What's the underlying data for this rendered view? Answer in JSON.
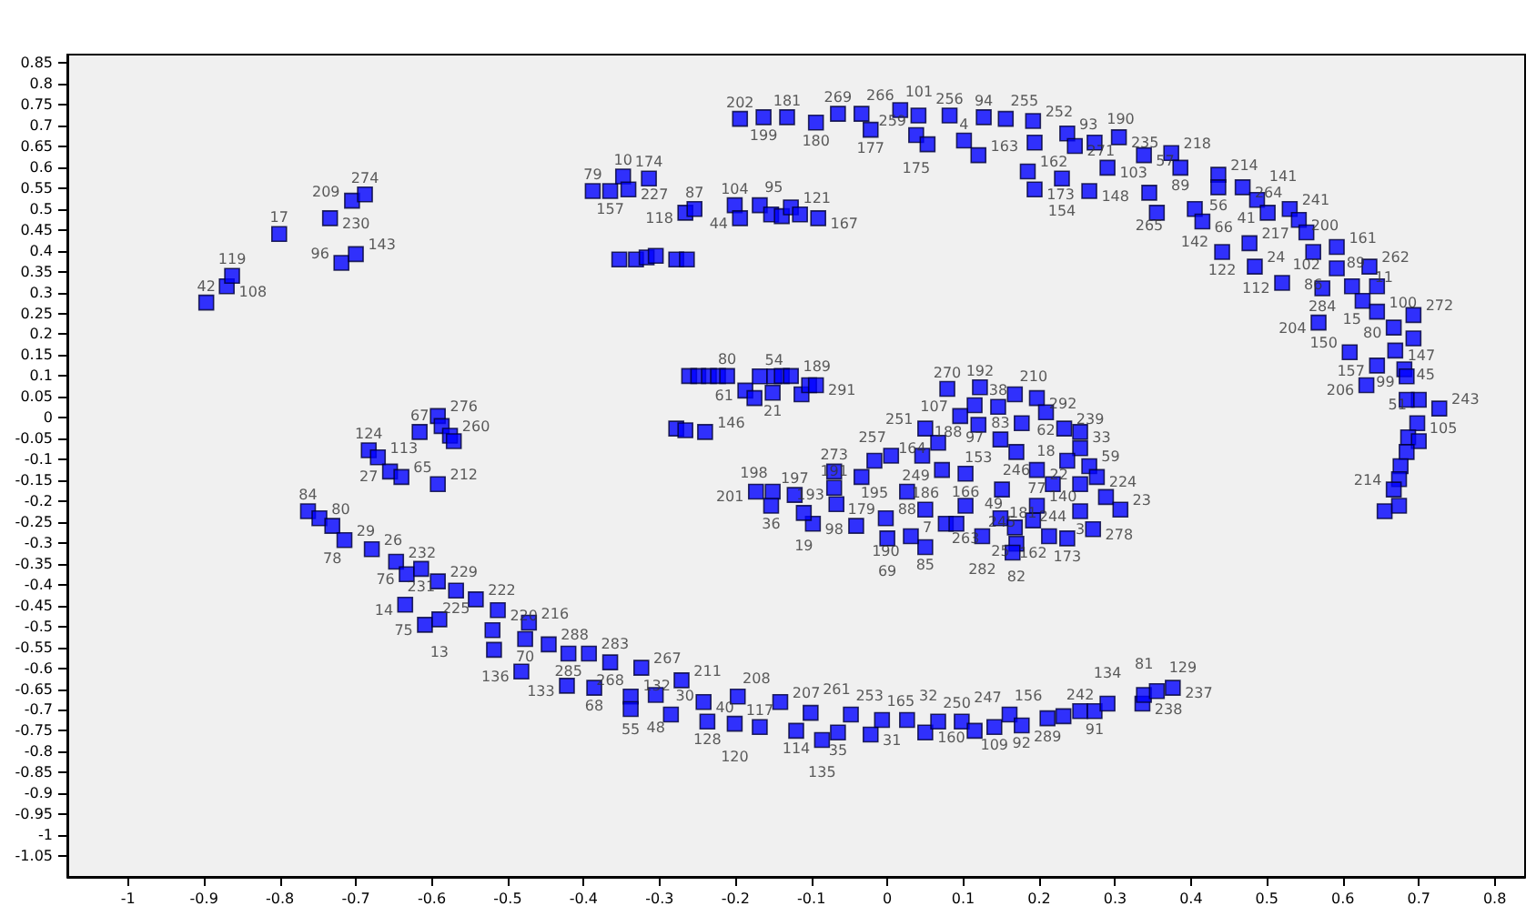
{
  "chart_data": {
    "type": "scatter",
    "marker": "square",
    "grid": false,
    "xlim": [
      -1.08,
      0.84
    ],
    "xticks": [
      -1,
      -0.9,
      -0.8,
      -0.7,
      -0.6,
      -0.5,
      -0.4,
      -0.3,
      -0.2,
      -0.1,
      0,
      0.1,
      0.2,
      0.3,
      0.4,
      0.5,
      0.6,
      0.7,
      0.8
    ],
    "ylim": [
      -1.1,
      0.87
    ],
    "yticks": [
      -1.05,
      -1,
      -0.95,
      -0.9,
      -0.85,
      -0.8,
      -0.75,
      -0.7,
      -0.65,
      -0.6,
      -0.55,
      -0.5,
      -0.45,
      -0.4,
      -0.35,
      -0.3,
      -0.25,
      -0.2,
      -0.15,
      -0.1,
      -0.05,
      0,
      0.05,
      0.1,
      0.15,
      0.2,
      0.25,
      0.3,
      0.35,
      0.4,
      0.45,
      0.5,
      0.55,
      0.6,
      0.65,
      0.7,
      0.75,
      0.8,
      0.85
    ],
    "series": [
      {
        "color": "#0000ff",
        "x": [
          -0.897,
          -0.87,
          -0.863,
          -0.801,
          -0.734,
          -0.705,
          -0.688,
          -0.719,
          -0.7,
          -0.616,
          -0.592,
          -0.587,
          -0.576,
          -0.571,
          -0.683,
          -0.671,
          -0.655,
          -0.64,
          -0.592,
          -0.763,
          -0.748,
          -0.731,
          -0.715,
          -0.679,
          -0.647,
          -0.633,
          -0.614,
          -0.592,
          -0.568,
          -0.635,
          -0.609,
          -0.59,
          -0.542,
          -0.513,
          -0.52,
          -0.518,
          -0.472,
          -0.477,
          -0.446,
          -0.42,
          -0.393,
          -0.365,
          -0.482,
          -0.422,
          -0.386,
          -0.324,
          -0.338,
          -0.338,
          -0.305,
          -0.271,
          -0.285,
          -0.242,
          -0.237,
          -0.197,
          -0.201,
          -0.168,
          -0.141,
          -0.12,
          -0.101,
          -0.086,
          -0.065,
          -0.048,
          -0.022,
          -0.007,
          0.026,
          0.05,
          0.067,
          0.098,
          0.115,
          0.141,
          0.161,
          0.177,
          0.211,
          0.232,
          0.254,
          0.273,
          0.29,
          0.336,
          0.338,
          0.355,
          0.376,
          -0.388,
          -0.365,
          -0.348,
          -0.341,
          -0.314,
          -0.266,
          -0.254,
          -0.201,
          -0.194,
          -0.168,
          -0.153,
          -0.139,
          -0.127,
          -0.115,
          -0.091,
          -0.353,
          -0.331,
          -0.317,
          -0.305,
          -0.278,
          -0.264,
          -0.194,
          -0.163,
          -0.132,
          -0.094,
          -0.065,
          -0.034,
          -0.022,
          0.017,
          0.041,
          0.038,
          0.053,
          0.082,
          0.101,
          0.127,
          0.12,
          0.156,
          0.192,
          0.194,
          0.185,
          0.194,
          0.237,
          0.247,
          0.273,
          0.305,
          0.29,
          0.23,
          0.266,
          0.338,
          0.374,
          0.386,
          0.345,
          0.355,
          0.436,
          0.436,
          0.468,
          0.405,
          0.415,
          0.487,
          0.501,
          0.441,
          0.477,
          0.484,
          0.53,
          0.542,
          0.552,
          0.561,
          0.592,
          0.52,
          0.573,
          0.592,
          0.612,
          0.626,
          0.635,
          0.645,
          0.568,
          0.645,
          0.693,
          0.667,
          0.693,
          0.609,
          0.669,
          0.681,
          0.645,
          0.684,
          0.631,
          0.727,
          0.7,
          0.684,
          0.698,
          0.686,
          0.7,
          0.684,
          0.676,
          0.674,
          0.667,
          0.655,
          0.674,
          -0.261,
          -0.249,
          -0.235,
          -0.223,
          -0.211,
          -0.187,
          -0.175,
          -0.168,
          -0.149,
          -0.151,
          -0.139,
          -0.127,
          -0.113,
          -0.103,
          -0.094,
          -0.278,
          -0.266,
          -0.24,
          0.079,
          0.122,
          0.115,
          0.146,
          0.096,
          0.12,
          0.168,
          0.197,
          0.177,
          0.149,
          0.05,
          0.067,
          0.209,
          0.233,
          0.254,
          0.254,
          0.237,
          0.266,
          0.17,
          0.197,
          0.218,
          0.254,
          0.276,
          0.288,
          0.307,
          0.197,
          0.192,
          0.254,
          0.237,
          0.271,
          0.213,
          0.103,
          0.072,
          0.046,
          0.005,
          -0.017,
          -0.07,
          -0.034,
          0.026,
          0.05,
          0.103,
          0.151,
          0.149,
          0.168,
          0.077,
          0.091,
          0.125,
          0.17,
          0.165,
          0.05,
          0.031,
          -0.002,
          0.0,
          -0.041,
          -0.098,
          -0.11,
          -0.122,
          -0.151,
          -0.173,
          -0.153,
          -0.067,
          -0.07
        ],
        "values": [
          0.276,
          0.315,
          0.34,
          0.44,
          0.478,
          0.52,
          0.535,
          0.371,
          0.392,
          -0.034,
          0.004,
          -0.02,
          -0.043,
          -0.056,
          -0.078,
          -0.095,
          -0.129,
          -0.142,
          -0.159,
          -0.224,
          -0.241,
          -0.259,
          -0.293,
          -0.315,
          -0.345,
          -0.375,
          -0.362,
          -0.392,
          -0.414,
          -0.448,
          -0.496,
          -0.483,
          -0.435,
          -0.461,
          -0.509,
          -0.556,
          -0.491,
          -0.53,
          -0.543,
          -0.565,
          -0.565,
          -0.586,
          -0.608,
          -0.642,
          -0.647,
          -0.599,
          -0.668,
          -0.698,
          -0.664,
          -0.629,
          -0.711,
          -0.681,
          -0.728,
          -0.668,
          -0.733,
          -0.741,
          -0.681,
          -0.75,
          -0.707,
          -0.772,
          -0.754,
          -0.711,
          -0.759,
          -0.724,
          -0.724,
          -0.754,
          -0.728,
          -0.728,
          -0.75,
          -0.741,
          -0.711,
          -0.737,
          -0.72,
          -0.715,
          -0.703,
          -0.703,
          -0.685,
          -0.685,
          -0.664,
          -0.655,
          -0.647,
          0.543,
          0.543,
          0.578,
          0.547,
          0.573,
          0.491,
          0.5,
          0.509,
          0.478,
          0.509,
          0.487,
          0.483,
          0.504,
          0.487,
          0.478,
          0.379,
          0.379,
          0.384,
          0.388,
          0.379,
          0.379,
          0.716,
          0.72,
          0.72,
          0.707,
          0.728,
          0.728,
          0.69,
          0.737,
          0.724,
          0.677,
          0.655,
          0.724,
          0.664,
          0.72,
          0.629,
          0.716,
          0.711,
          0.659,
          0.59,
          0.547,
          0.681,
          0.651,
          0.659,
          0.672,
          0.599,
          0.573,
          0.543,
          0.629,
          0.634,
          0.599,
          0.539,
          0.491,
          0.582,
          0.552,
          0.552,
          0.5,
          0.47,
          0.522,
          0.491,
          0.397,
          0.418,
          0.362,
          0.5,
          0.474,
          0.444,
          0.397,
          0.409,
          0.323,
          0.31,
          0.358,
          0.315,
          0.28,
          0.362,
          0.315,
          0.228,
          0.254,
          0.246,
          0.216,
          0.19,
          0.157,
          0.161,
          0.116,
          0.125,
          0.099,
          0.078,
          0.022,
          0.043,
          0.043,
          -0.013,
          -0.047,
          -0.056,
          -0.082,
          -0.116,
          -0.147,
          -0.172,
          -0.224,
          -0.211,
          0.1,
          0.1,
          0.1,
          0.1,
          0.1,
          0.065,
          0.047,
          0.099,
          0.099,
          0.06,
          0.1,
          0.1,
          0.056,
          0.078,
          0.078,
          -0.026,
          -0.03,
          -0.034,
          0.069,
          0.073,
          0.03,
          0.026,
          0.004,
          -0.017,
          0.056,
          0.047,
          -0.013,
          -0.052,
          -0.026,
          -0.06,
          0.013,
          -0.026,
          -0.034,
          -0.073,
          -0.103,
          -0.116,
          -0.082,
          -0.125,
          -0.159,
          -0.159,
          -0.142,
          -0.19,
          -0.22,
          -0.211,
          -0.246,
          -0.224,
          -0.289,
          -0.267,
          -0.284,
          -0.134,
          -0.125,
          -0.091,
          -0.091,
          -0.103,
          -0.129,
          -0.142,
          -0.177,
          -0.22,
          -0.211,
          -0.172,
          -0.241,
          -0.263,
          -0.254,
          -0.254,
          -0.284,
          -0.302,
          -0.323,
          -0.31,
          -0.284,
          -0.241,
          -0.289,
          -0.259,
          -0.254,
          -0.228,
          -0.185,
          -0.177,
          -0.177,
          -0.211,
          -0.207,
          -0.168
        ]
      }
    ],
    "annotations": [
      {
        "text": "42",
        "x": -0.897,
        "y": 0.276
      },
      {
        "text": "108",
        "x": -0.87,
        "y": 0.315
      },
      {
        "text": "119",
        "x": -0.863,
        "y": 0.34
      },
      {
        "text": "17",
        "x": -0.801,
        "y": 0.44
      },
      {
        "text": "230",
        "x": -0.734,
        "y": 0.478
      },
      {
        "text": "209",
        "x": -0.705,
        "y": 0.52
      },
      {
        "text": "274",
        "x": -0.688,
        "y": 0.535
      },
      {
        "text": "96",
        "x": -0.719,
        "y": 0.371
      },
      {
        "text": "143",
        "x": -0.7,
        "y": 0.392
      },
      {
        "text": "67",
        "x": -0.616,
        "y": -0.034
      },
      {
        "text": "276",
        "x": -0.592,
        "y": 0.004
      },
      {
        "text": "260",
        "x": -0.576,
        "y": -0.043
      },
      {
        "text": "124",
        "x": -0.683,
        "y": -0.078
      },
      {
        "text": "113",
        "x": -0.671,
        "y": -0.095
      },
      {
        "text": "27",
        "x": -0.655,
        "y": -0.129
      },
      {
        "text": "65",
        "x": -0.64,
        "y": -0.142
      },
      {
        "text": "212",
        "x": -0.592,
        "y": -0.159
      },
      {
        "text": "84",
        "x": -0.763,
        "y": -0.224
      },
      {
        "text": "80",
        "x": -0.748,
        "y": -0.241
      },
      {
        "text": "78",
        "x": -0.731,
        "y": -0.259
      },
      {
        "text": "29",
        "x": -0.715,
        "y": -0.293
      },
      {
        "text": "26",
        "x": -0.679,
        "y": -0.315
      },
      {
        "text": "232",
        "x": -0.647,
        "y": -0.345
      },
      {
        "text": "76",
        "x": -0.633,
        "y": -0.375
      },
      {
        "text": "231",
        "x": -0.614,
        "y": -0.362
      },
      {
        "text": "229",
        "x": -0.592,
        "y": -0.392
      },
      {
        "text": "225",
        "x": -0.568,
        "y": -0.414
      },
      {
        "text": "14",
        "x": -0.635,
        "y": -0.448
      },
      {
        "text": "75",
        "x": -0.609,
        "y": -0.496
      },
      {
        "text": "13",
        "x": -0.59,
        "y": -0.483
      },
      {
        "text": "222",
        "x": -0.542,
        "y": -0.435
      },
      {
        "text": "220",
        "x": -0.513,
        "y": -0.461
      },
      {
        "text": "216",
        "x": -0.472,
        "y": -0.491
      },
      {
        "text": "70",
        "x": -0.477,
        "y": -0.53
      },
      {
        "text": "288",
        "x": -0.446,
        "y": -0.543
      },
      {
        "text": "285",
        "x": -0.42,
        "y": -0.565
      },
      {
        "text": "283",
        "x": -0.393,
        "y": -0.565
      },
      {
        "text": "268",
        "x": -0.365,
        "y": -0.586
      },
      {
        "text": "136",
        "x": -0.482,
        "y": -0.608
      },
      {
        "text": "133",
        "x": -0.422,
        "y": -0.642
      },
      {
        "text": "68",
        "x": -0.386,
        "y": -0.647
      },
      {
        "text": "267",
        "x": -0.324,
        "y": -0.599
      },
      {
        "text": "55",
        "x": -0.338,
        "y": -0.668
      },
      {
        "text": "132",
        "x": -0.338,
        "y": -0.698
      },
      {
        "text": "48",
        "x": -0.305,
        "y": -0.664
      },
      {
        "text": "211",
        "x": -0.271,
        "y": -0.629
      },
      {
        "text": "30",
        "x": -0.285,
        "y": -0.711
      },
      {
        "text": "40",
        "x": -0.242,
        "y": -0.681
      },
      {
        "text": "128",
        "x": -0.237,
        "y": -0.728
      },
      {
        "text": "208",
        "x": -0.197,
        "y": -0.668
      },
      {
        "text": "120",
        "x": -0.201,
        "y": -0.733
      },
      {
        "text": "117",
        "x": -0.168,
        "y": -0.741
      },
      {
        "text": "207",
        "x": -0.141,
        "y": -0.681
      },
      {
        "text": "114",
        "x": -0.12,
        "y": -0.75
      },
      {
        "text": "261",
        "x": -0.101,
        "y": -0.707
      },
      {
        "text": "135",
        "x": -0.086,
        "y": -0.772
      },
      {
        "text": "35",
        "x": -0.065,
        "y": -0.754
      },
      {
        "text": "253",
        "x": -0.048,
        "y": -0.711
      },
      {
        "text": "31",
        "x": -0.022,
        "y": -0.759
      },
      {
        "text": "165",
        "x": -0.007,
        "y": -0.724
      },
      {
        "text": "32",
        "x": 0.026,
        "y": -0.724
      },
      {
        "text": "160",
        "x": 0.05,
        "y": -0.754
      },
      {
        "text": "250",
        "x": 0.067,
        "y": -0.728
      },
      {
        "text": "247",
        "x": 0.098,
        "y": -0.728
      },
      {
        "text": "109",
        "x": 0.141,
        "y": -0.741
      },
      {
        "text": "156",
        "x": 0.161,
        "y": -0.711
      },
      {
        "text": "92",
        "x": 0.177,
        "y": -0.737
      },
      {
        "text": "289",
        "x": 0.211,
        "y": -0.72
      },
      {
        "text": "242",
        "x": 0.254,
        "y": -0.703
      },
      {
        "text": "91",
        "x": 0.273,
        "y": -0.703
      },
      {
        "text": "134",
        "x": 0.29,
        "y": -0.685
      },
      {
        "text": "238",
        "x": 0.336,
        "y": -0.685
      },
      {
        "text": "81",
        "x": 0.338,
        "y": -0.664
      },
      {
        "text": "129",
        "x": 0.355,
        "y": -0.655
      },
      {
        "text": "237",
        "x": 0.376,
        "y": -0.647
      },
      {
        "text": "79",
        "x": -0.388,
        "y": 0.543
      },
      {
        "text": "157",
        "x": -0.365,
        "y": 0.543
      },
      {
        "text": "10",
        "x": -0.348,
        "y": 0.578
      },
      {
        "text": "227",
        "x": -0.341,
        "y": 0.547
      },
      {
        "text": "174",
        "x": -0.314,
        "y": 0.573
      },
      {
        "text": "118",
        "x": -0.266,
        "y": 0.491
      },
      {
        "text": "87",
        "x": -0.254,
        "y": 0.5
      },
      {
        "text": "104",
        "x": -0.201,
        "y": 0.509
      },
      {
        "text": "44",
        "x": -0.194,
        "y": 0.478
      },
      {
        "text": "95",
        "x": -0.168,
        "y": 0.509
      },
      {
        "text": "121",
        "x": -0.127,
        "y": 0.504
      },
      {
        "text": "167",
        "x": -0.091,
        "y": 0.478
      },
      {
        "text": "202",
        "x": -0.194,
        "y": 0.716
      },
      {
        "text": "199",
        "x": -0.163,
        "y": 0.72
      },
      {
        "text": "181",
        "x": -0.132,
        "y": 0.72
      },
      {
        "text": "180",
        "x": -0.094,
        "y": 0.707
      },
      {
        "text": "269",
        "x": -0.065,
        "y": 0.728
      },
      {
        "text": "266",
        "x": -0.034,
        "y": 0.728
      },
      {
        "text": "177",
        "x": -0.022,
        "y": 0.69
      },
      {
        "text": "101",
        "x": 0.017,
        "y": 0.737
      },
      {
        "text": "259",
        "x": 0.041,
        "y": 0.724
      },
      {
        "text": "175",
        "x": 0.038,
        "y": 0.677
      },
      {
        "text": "256",
        "x": 0.082,
        "y": 0.724
      },
      {
        "text": "4",
        "x": 0.101,
        "y": 0.664
      },
      {
        "text": "94",
        "x": 0.127,
        "y": 0.72
      },
      {
        "text": "163",
        "x": 0.12,
        "y": 0.629
      },
      {
        "text": "255",
        "x": 0.156,
        "y": 0.716
      },
      {
        "text": "252",
        "x": 0.192,
        "y": 0.711
      },
      {
        "text": "162",
        "x": 0.185,
        "y": 0.59
      },
      {
        "text": "173",
        "x": 0.194,
        "y": 0.547
      },
      {
        "text": "93",
        "x": 0.237,
        "y": 0.681
      },
      {
        "text": "271",
        "x": 0.247,
        "y": 0.651
      },
      {
        "text": "190",
        "x": 0.273,
        "y": 0.659
      },
      {
        "text": "235",
        "x": 0.305,
        "y": 0.672
      },
      {
        "text": "103",
        "x": 0.29,
        "y": 0.599
      },
      {
        "text": "154",
        "x": 0.23,
        "y": 0.573
      },
      {
        "text": "148",
        "x": 0.266,
        "y": 0.543
      },
      {
        "text": "57",
        "x": 0.338,
        "y": 0.629
      },
      {
        "text": "218",
        "x": 0.374,
        "y": 0.634
      },
      {
        "text": "89",
        "x": 0.386,
        "y": 0.599
      },
      {
        "text": "265",
        "x": 0.345,
        "y": 0.539
      },
      {
        "text": "214",
        "x": 0.436,
        "y": 0.582
      },
      {
        "text": "56",
        "x": 0.436,
        "y": 0.552
      },
      {
        "text": "264",
        "x": 0.468,
        "y": 0.552
      },
      {
        "text": "142",
        "x": 0.405,
        "y": 0.5
      },
      {
        "text": "66",
        "x": 0.415,
        "y": 0.47
      },
      {
        "text": "141",
        "x": 0.487,
        "y": 0.522
      },
      {
        "text": "41",
        "x": 0.501,
        "y": 0.491
      },
      {
        "text": "122",
        "x": 0.441,
        "y": 0.397
      },
      {
        "text": "217",
        "x": 0.477,
        "y": 0.418
      },
      {
        "text": "24",
        "x": 0.484,
        "y": 0.362
      },
      {
        "text": "241",
        "x": 0.53,
        "y": 0.5
      },
      {
        "text": "200",
        "x": 0.542,
        "y": 0.474
      },
      {
        "text": "102",
        "x": 0.552,
        "y": 0.444
      },
      {
        "text": "86",
        "x": 0.561,
        "y": 0.397
      },
      {
        "text": "161",
        "x": 0.592,
        "y": 0.409
      },
      {
        "text": "112",
        "x": 0.52,
        "y": 0.323
      },
      {
        "text": "284",
        "x": 0.573,
        "y": 0.31
      },
      {
        "text": "15",
        "x": 0.612,
        "y": 0.315
      },
      {
        "text": "11",
        "x": 0.626,
        "y": 0.28
      },
      {
        "text": "262",
        "x": 0.635,
        "y": 0.362
      },
      {
        "text": "89",
        "x": 0.645,
        "y": 0.315
      },
      {
        "text": "204",
        "x": 0.568,
        "y": 0.228
      },
      {
        "text": "100",
        "x": 0.645,
        "y": 0.254
      },
      {
        "text": "272",
        "x": 0.693,
        "y": 0.246
      },
      {
        "text": "80",
        "x": 0.667,
        "y": 0.216
      },
      {
        "text": "150",
        "x": 0.609,
        "y": 0.157
      },
      {
        "text": "147",
        "x": 0.669,
        "y": 0.161
      },
      {
        "text": "45",
        "x": 0.681,
        "y": 0.116
      },
      {
        "text": "157",
        "x": 0.645,
        "y": 0.125
      },
      {
        "text": "99",
        "x": 0.684,
        "y": 0.099
      },
      {
        "text": "206",
        "x": 0.631,
        "y": 0.078
      },
      {
        "text": "243",
        "x": 0.727,
        "y": 0.022
      },
      {
        "text": "51",
        "x": 0.7,
        "y": 0.043
      },
      {
        "text": "105",
        "x": 0.698,
        "y": -0.013
      },
      {
        "text": "214",
        "x": 0.667,
        "y": -0.172
      },
      {
        "text": "80",
        "x": -0.211,
        "y": 0.1
      },
      {
        "text": "61",
        "x": -0.187,
        "y": 0.065
      },
      {
        "text": "54",
        "x": -0.149,
        "y": 0.099
      },
      {
        "text": "21",
        "x": -0.151,
        "y": 0.06
      },
      {
        "text": "189",
        "x": -0.127,
        "y": 0.1
      },
      {
        "text": "291",
        "x": -0.094,
        "y": 0.078
      },
      {
        "text": "146",
        "x": -0.24,
        "y": -0.034
      },
      {
        "text": "270",
        "x": 0.079,
        "y": 0.069
      },
      {
        "text": "192",
        "x": 0.122,
        "y": 0.073
      },
      {
        "text": "97",
        "x": 0.115,
        "y": 0.03
      },
      {
        "text": "38",
        "x": 0.146,
        "y": 0.026
      },
      {
        "text": "107",
        "x": 0.096,
        "y": 0.004
      },
      {
        "text": "153",
        "x": 0.12,
        "y": -0.017
      },
      {
        "text": "210",
        "x": 0.168,
        "y": 0.056
      },
      {
        "text": "292",
        "x": 0.197,
        "y": 0.047
      },
      {
        "text": "83",
        "x": 0.149,
        "y": -0.052
      },
      {
        "text": "251",
        "x": 0.05,
        "y": -0.026
      },
      {
        "text": "164",
        "x": 0.067,
        "y": -0.06
      },
      {
        "text": "62",
        "x": 0.209,
        "y": 0.013
      },
      {
        "text": "239",
        "x": 0.233,
        "y": -0.026
      },
      {
        "text": "33",
        "x": 0.254,
        "y": -0.034
      },
      {
        "text": "18",
        "x": 0.237,
        "y": -0.103
      },
      {
        "text": "59",
        "x": 0.266,
        "y": -0.116
      },
      {
        "text": "246",
        "x": 0.17,
        "y": -0.082
      },
      {
        "text": "77",
        "x": 0.197,
        "y": -0.125
      },
      {
        "text": "244",
        "x": 0.218,
        "y": -0.159
      },
      {
        "text": "22",
        "x": 0.254,
        "y": -0.159
      },
      {
        "text": "224",
        "x": 0.276,
        "y": -0.142
      },
      {
        "text": "23",
        "x": 0.307,
        "y": -0.22
      },
      {
        "text": "140",
        "x": 0.197,
        "y": -0.211
      },
      {
        "text": "162",
        "x": 0.192,
        "y": -0.246
      },
      {
        "text": "3",
        "x": 0.254,
        "y": -0.224
      },
      {
        "text": "173",
        "x": 0.237,
        "y": -0.289
      },
      {
        "text": "278",
        "x": 0.271,
        "y": -0.267
      },
      {
        "text": "181",
        "x": 0.213,
        "y": -0.284
      },
      {
        "text": "166",
        "x": 0.103,
        "y": -0.134
      },
      {
        "text": "249",
        "x": 0.072,
        "y": -0.125
      },
      {
        "text": "188",
        "x": 0.046,
        "y": -0.091
      },
      {
        "text": "257",
        "x": 0.005,
        "y": -0.091
      },
      {
        "text": "195",
        "x": -0.017,
        "y": -0.103
      },
      {
        "text": "273",
        "x": -0.07,
        "y": -0.129
      },
      {
        "text": "179",
        "x": -0.034,
        "y": -0.142
      },
      {
        "text": "88",
        "x": 0.026,
        "y": -0.177
      },
      {
        "text": "186",
        "x": 0.05,
        "y": -0.22
      },
      {
        "text": "263",
        "x": 0.103,
        "y": -0.211
      },
      {
        "text": "245",
        "x": 0.151,
        "y": -0.172
      },
      {
        "text": "25",
        "x": 0.149,
        "y": -0.241
      },
      {
        "text": "49",
        "x": 0.168,
        "y": -0.263
      },
      {
        "text": "282",
        "x": 0.125,
        "y": -0.284
      },
      {
        "text": "82",
        "x": 0.17,
        "y": -0.302
      },
      {
        "text": "85",
        "x": 0.05,
        "y": -0.31
      },
      {
        "text": "7",
        "x": 0.031,
        "y": -0.284
      },
      {
        "text": "190",
        "x": -0.002,
        "y": -0.241
      },
      {
        "text": "69",
        "x": 0.0,
        "y": -0.289
      },
      {
        "text": "98",
        "x": -0.098,
        "y": -0.254
      },
      {
        "text": "19",
        "x": -0.11,
        "y": -0.228
      },
      {
        "text": "197",
        "x": -0.122,
        "y": -0.185
      },
      {
        "text": "198",
        "x": -0.151,
        "y": -0.177
      },
      {
        "text": "201",
        "x": -0.173,
        "y": -0.177
      },
      {
        "text": "36",
        "x": -0.153,
        "y": -0.211
      },
      {
        "text": "193",
        "x": -0.067,
        "y": -0.207
      },
      {
        "text": "191",
        "x": -0.07,
        "y": -0.168
      }
    ]
  }
}
